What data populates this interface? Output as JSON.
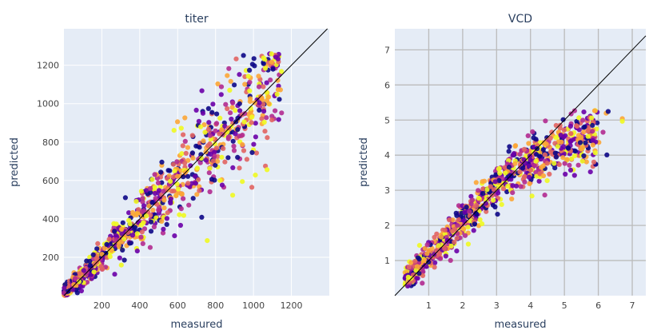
{
  "chart_data": [
    {
      "type": "scatter",
      "title": "titer",
      "xlabel": "measured",
      "ylabel": "predicted",
      "xlim": [
        0,
        1400
      ],
      "ylim": [
        0,
        1390
      ],
      "xticks": [
        200,
        400,
        600,
        800,
        1000,
        1200
      ],
      "yticks": [
        200,
        400,
        600,
        800,
        1000,
        1200
      ],
      "grid": true,
      "reference_line": "y = x",
      "colorscale": [
        "#0d0887",
        "#6a00a8",
        "#b12a90",
        "#e16462",
        "#fca636",
        "#f0f921"
      ],
      "point_count": 900,
      "x_range_of_points": [
        0,
        1150
      ],
      "y_range_of_points": [
        0,
        1260
      ]
    },
    {
      "type": "scatter",
      "title": "VCD",
      "xlabel": "measured",
      "ylabel": "predicted",
      "xlim": [
        0,
        7.4
      ],
      "ylim": [
        0,
        7.6
      ],
      "xticks": [
        1,
        2,
        3,
        4,
        5,
        6,
        7
      ],
      "yticks": [
        1,
        2,
        3,
        4,
        5,
        6,
        7
      ],
      "grid": true,
      "reference_line": "y = x",
      "colorscale": [
        "#0d0887",
        "#6a00a8",
        "#b12a90",
        "#e16462",
        "#fca636",
        "#f0f921"
      ],
      "point_count": 900,
      "x_range_of_points": [
        0.3,
        6.9
      ],
      "y_range_of_points": [
        0.2,
        5.3
      ]
    }
  ]
}
